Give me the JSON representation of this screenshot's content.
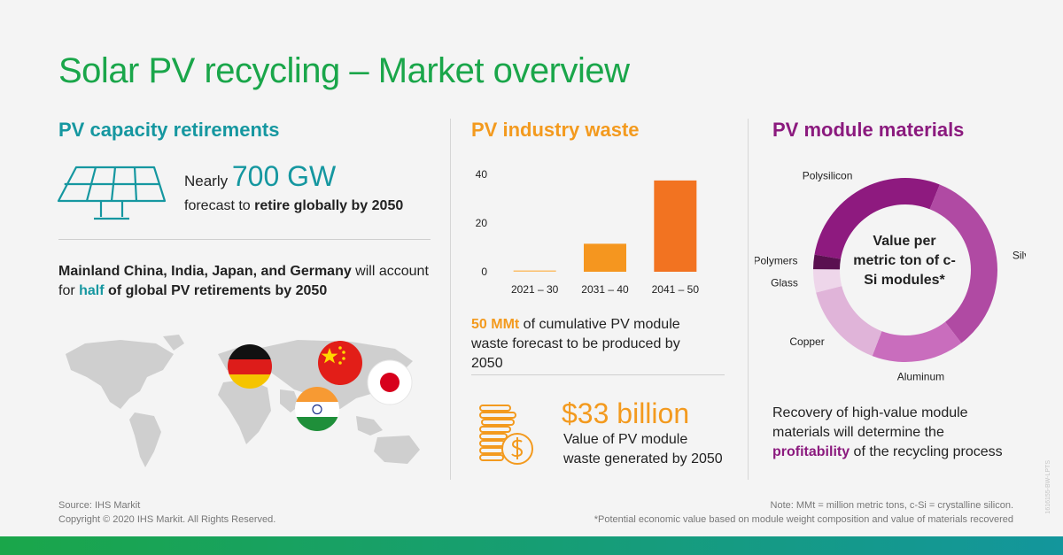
{
  "title": "Solar PV recycling – Market overview",
  "col1": {
    "heading": "PV capacity retirements",
    "nearly": "Nearly",
    "big_value": "700 GW",
    "line2_pre": "forecast to ",
    "line2_bold": "retire globally by 2050",
    "statement_bold": "Mainland China, India, Japan, and Germany",
    "statement_mid": " will account for ",
    "statement_half": "half",
    "statement_end": " of global PV retirements by 2050",
    "icon": "solar-panel-icon",
    "flags": [
      "Germany",
      "China",
      "Japan",
      "India"
    ]
  },
  "col2": {
    "heading": "PV industry waste",
    "waste_bold": "50 MMt",
    "waste_text": " of cumulative PV module waste forecast to be produced by 2050",
    "value_big": "$33 billion",
    "value_line1": "Value of PV module",
    "value_line2": "waste generated by 2050",
    "icon": "coins-dollar-icon"
  },
  "col3": {
    "heading": "PV module materials",
    "recovery_pre": "Recovery of high-value module materials will determine the ",
    "recovery_bold": "profitability",
    "recovery_end": " of the recycling process"
  },
  "chart_data": [
    {
      "type": "bar",
      "categories": [
        "2021 – 30",
        "2031 – 40",
        "2041 – 50"
      ],
      "values": [
        0.5,
        11.5,
        37.5
      ],
      "yticks": [
        0,
        20,
        40
      ],
      "ylim": [
        0,
        40
      ],
      "colors": [
        "#fbbf6b",
        "#f5961f",
        "#f27321"
      ]
    },
    {
      "type": "pie",
      "center_label": "Value per metric ton of c-Si modules*",
      "slices": [
        {
          "label": "Polysilicon",
          "value": 28,
          "color": "#8e1a7f"
        },
        {
          "label": "Silver",
          "value": 33,
          "color": "#b04aa3"
        },
        {
          "label": "Aluminum",
          "value": 16,
          "color": "#c96dbd"
        },
        {
          "label": "Copper",
          "value": 15,
          "color": "#e0b4d9"
        },
        {
          "label": "Glass",
          "value": 4,
          "color": "#eed6ea"
        },
        {
          "label": "Polymers",
          "value": 2.5,
          "color": "#5a1050"
        }
      ]
    }
  ],
  "footer": {
    "source": "Source: IHS Markit",
    "copyright": "Copyright © 2020 IHS Markit. All Rights Reserved.",
    "note": "Note: MMt = million metric tons, c-Si = crystalline silicon.",
    "footnote": "*Potential economic value based on module weight composition and value of materials recovered",
    "watermark": "1616155-BW-LPTS"
  }
}
